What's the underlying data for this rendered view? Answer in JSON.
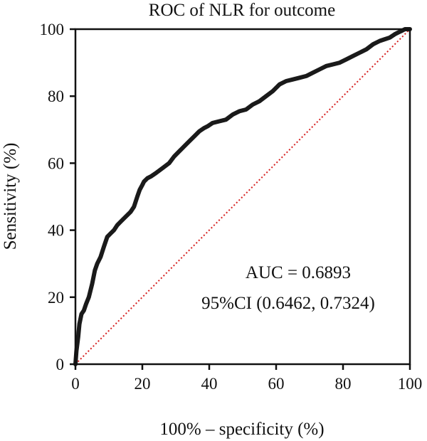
{
  "chart_data": {
    "type": "line",
    "title": "ROC of NLR for outcome",
    "xlabel": "100% – specificity (%)",
    "ylabel": "Sensitivity (%)",
    "xlim": [
      0,
      100
    ],
    "ylim": [
      0,
      100
    ],
    "xticks": [
      0,
      20,
      40,
      60,
      80,
      100
    ],
    "yticks": [
      0,
      20,
      40,
      60,
      80,
      100
    ],
    "xtick_labels": [
      "0",
      "20",
      "40",
      "60",
      "80",
      "100"
    ],
    "ytick_labels": [
      "0",
      "20",
      "40",
      "60",
      "80",
      "100"
    ],
    "grid": false,
    "annotations": [
      "AUC = 0.6893",
      "95%CI (0.6462, 0.7324)"
    ],
    "colors": {
      "roc": "#1a1a1a",
      "reference": "#d62020",
      "axis": "#111111"
    },
    "series": [
      {
        "style": "solid-thick",
        "x": [
          0,
          0.3,
          0.8,
          1.2,
          1.8,
          2.5,
          3.2,
          4.0,
          5.0,
          5.8,
          6.5,
          7.5,
          8.5,
          9.5,
          10.5,
          11.5,
          12.5,
          13.5,
          15,
          16.5,
          17.5,
          18.5,
          19.2,
          20.0,
          20.5,
          21.5,
          22.5,
          24,
          26,
          28,
          29.5,
          31,
          32.5,
          34,
          35.5,
          37,
          38.5,
          39.5,
          41,
          43,
          45,
          47,
          49,
          51,
          53,
          55,
          57,
          59,
          61,
          63,
          65,
          67,
          69,
          71,
          73,
          75,
          77,
          79,
          81,
          83,
          85,
          87,
          89,
          91,
          92.5,
          94,
          95.5,
          96.5,
          97.5,
          98.5,
          100
        ],
        "y": [
          0,
          4,
          8,
          12,
          15,
          16,
          18,
          20,
          24,
          28,
          30,
          32,
          35,
          38,
          39,
          40,
          41.5,
          42.5,
          44,
          45.5,
          47,
          50,
          52,
          53.5,
          54.5,
          55.5,
          56,
          57,
          58.5,
          60,
          62,
          63.5,
          65,
          66.5,
          68,
          69.5,
          70.5,
          71,
          72,
          72.5,
          73,
          74.5,
          75.5,
          76,
          77.5,
          78.5,
          80,
          81.5,
          83.5,
          84.5,
          85,
          85.5,
          86,
          87,
          88,
          89,
          89.5,
          90,
          91,
          92,
          93,
          94,
          95.5,
          96.5,
          97,
          97.5,
          98.5,
          99,
          99.5,
          100,
          100
        ]
      },
      {
        "style": "dotted-reference",
        "x": [
          0,
          100
        ],
        "y": [
          0,
          100
        ]
      }
    ]
  }
}
